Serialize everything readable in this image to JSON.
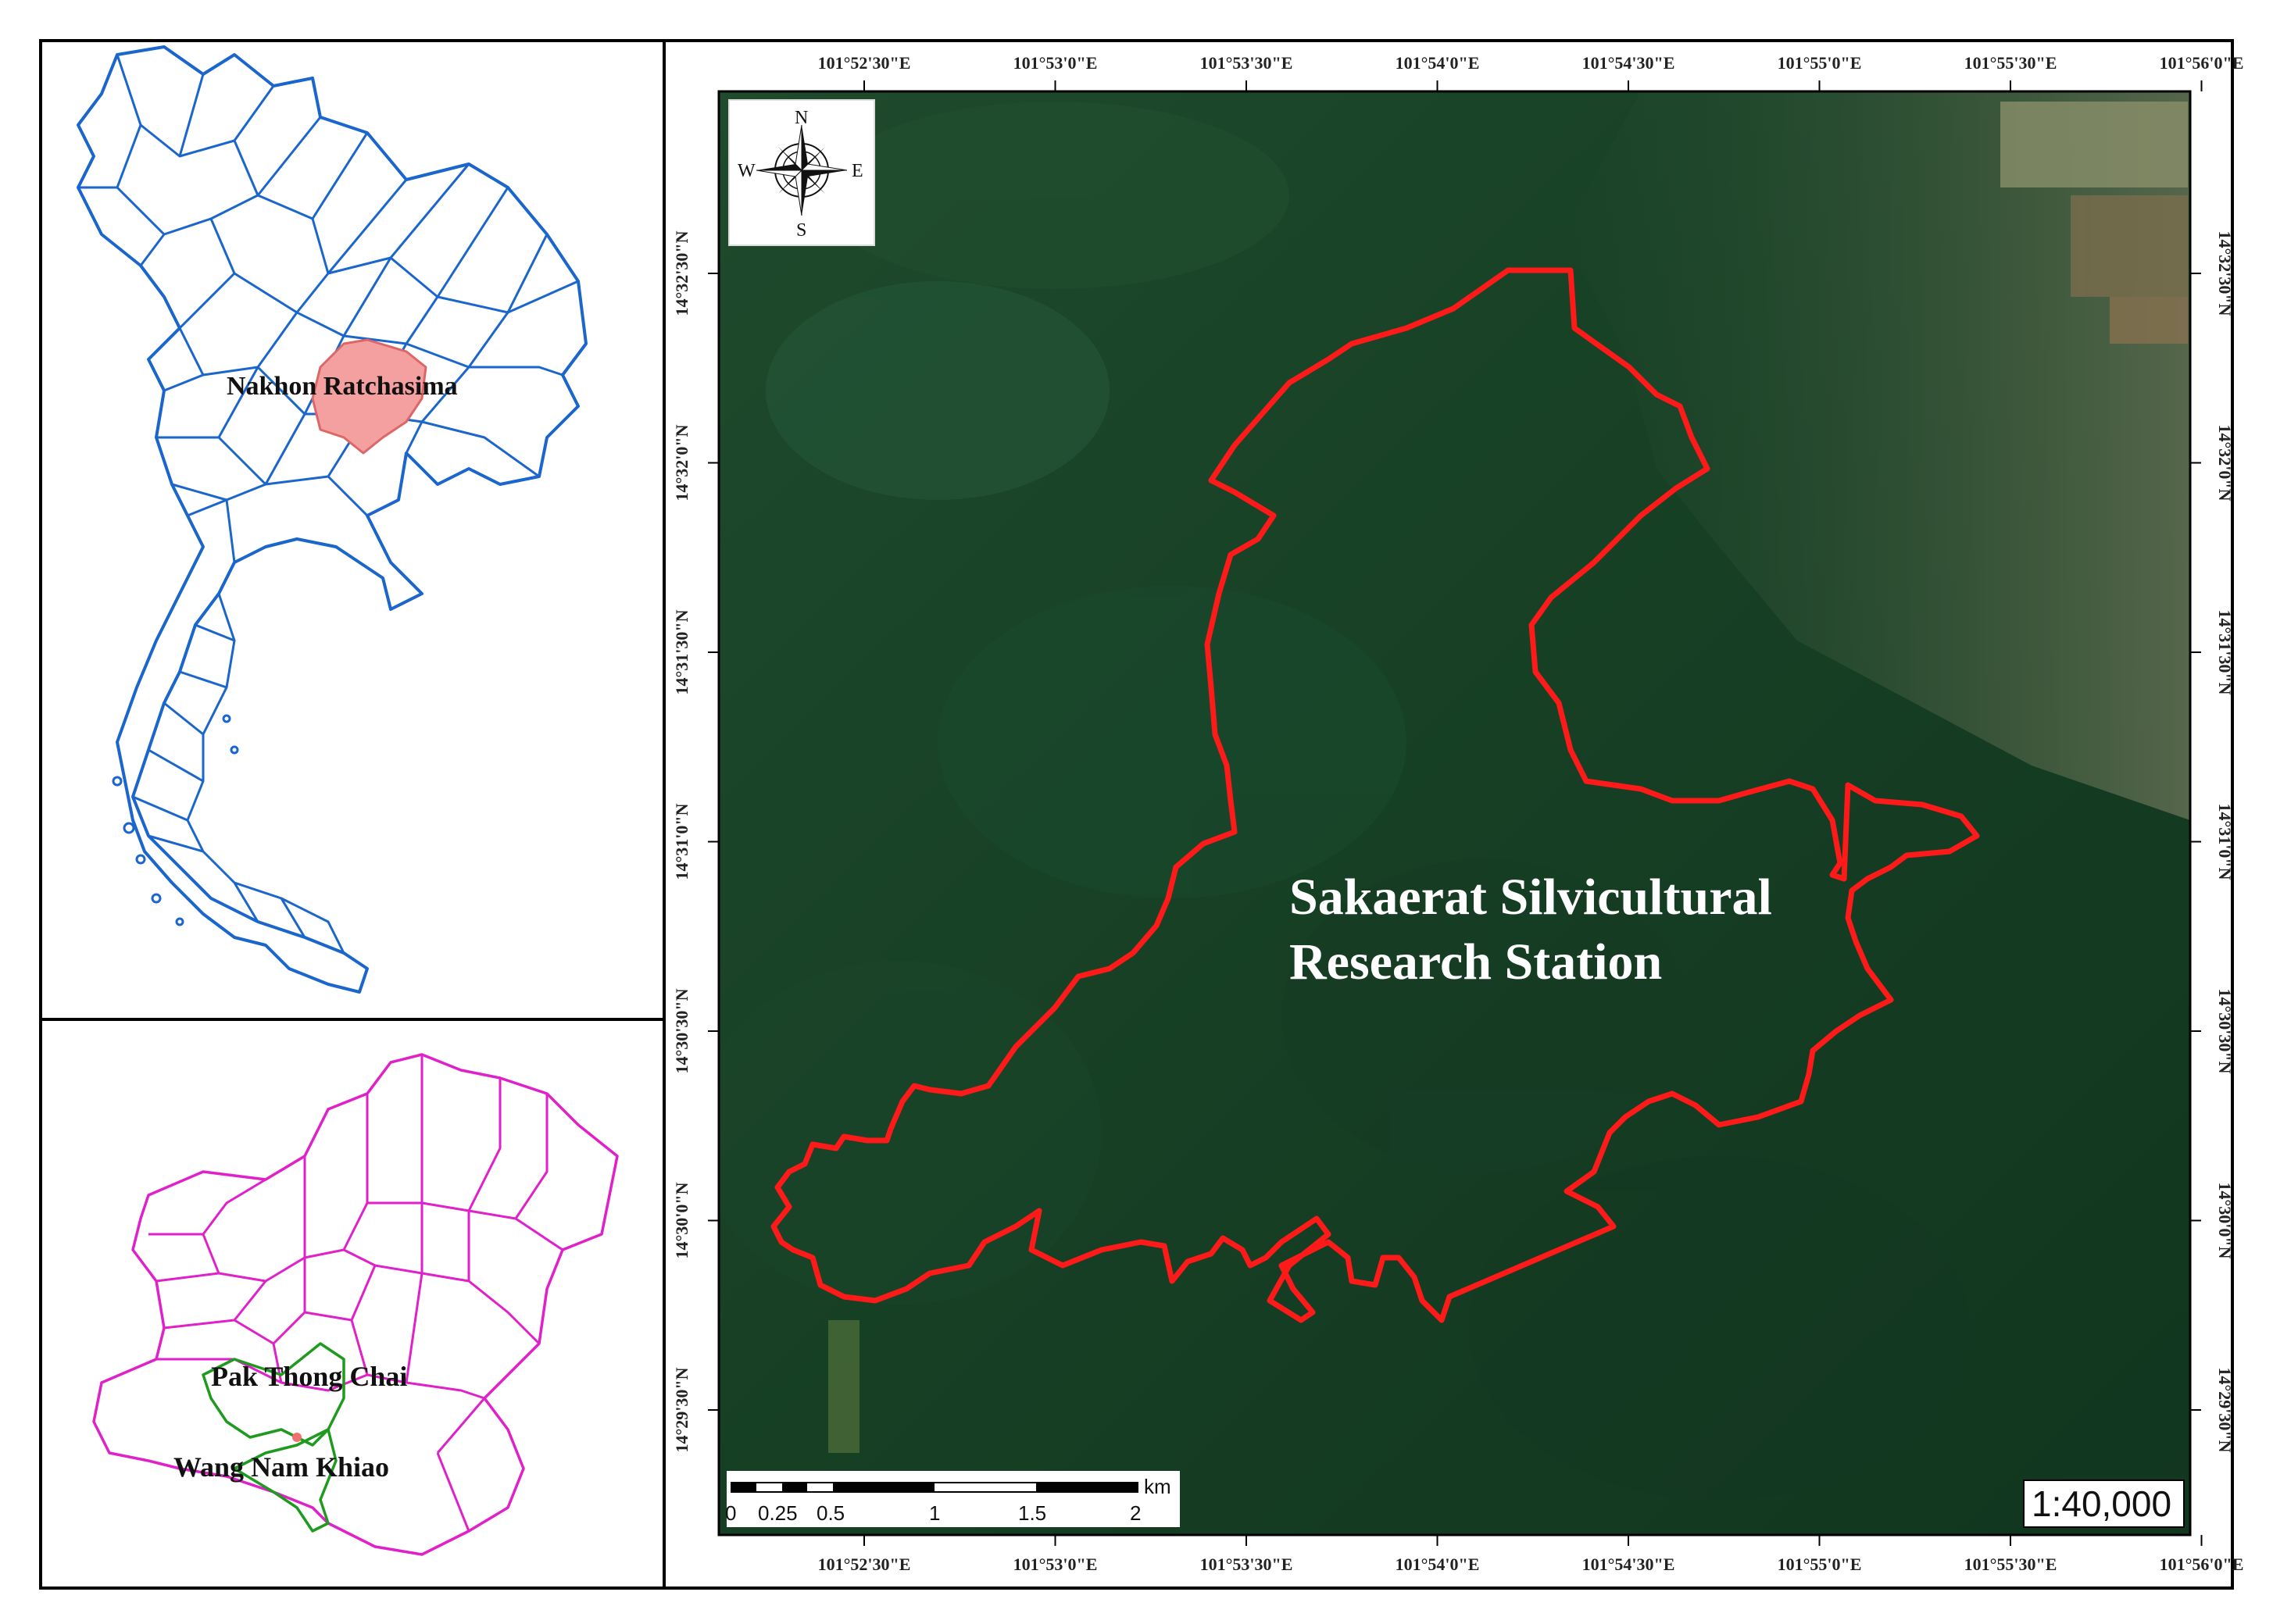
{
  "inset_country": {
    "label": "Nakhon Ratchasima",
    "boundary_color": "#1a66cc",
    "highlight_color": "#f4a0a0"
  },
  "inset_province": {
    "labels": [
      "Pak Thong Chai",
      "Wang Nam Khiao"
    ],
    "boundary_color": "#e020c8",
    "district_color": "#1e9a1e",
    "site_color": "#f07070"
  },
  "main_map": {
    "site_label_line1": "Sakaerat Silvicultural",
    "site_label_line2": "Research Station",
    "boundary_color": "#ff1a1a",
    "longitude_ticks": [
      "101°52'30\"E",
      "101°53'0\"E",
      "101°53'30\"E",
      "101°54'0\"E",
      "101°54'30\"E",
      "101°55'0\"E",
      "101°55'30\"E",
      "101°56'0\"E"
    ],
    "latitude_ticks": [
      "14°32'30\"N",
      "14°32'0\"N",
      "14°31'30\"N",
      "14°31'0\"N",
      "14°30'30\"N",
      "14°30'0\"N",
      "14°29'30\"N"
    ],
    "scale_ratio": "1:40,000",
    "scale_bar": {
      "unit": "km",
      "labels": [
        "0",
        "0.25",
        "0.5",
        "1",
        "1.5",
        "2"
      ]
    },
    "north_arrow": {
      "n": "N",
      "s": "S",
      "e": "E",
      "w": "W"
    }
  }
}
